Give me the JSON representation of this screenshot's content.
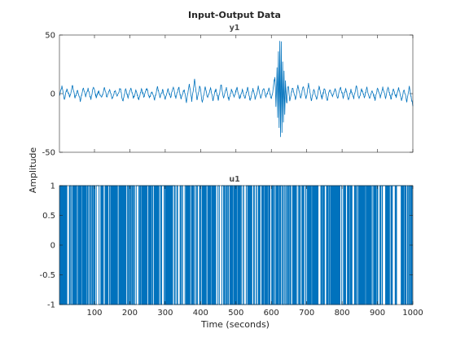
{
  "chart_data": [
    {
      "type": "line",
      "title": "Input-Output Data",
      "subtitle": "y1",
      "xlabel": "",
      "ylabel": "Amplitude",
      "xlim": [
        1,
        1000
      ],
      "ylim": [
        -50,
        50
      ],
      "yticks": [
        -50,
        0,
        50
      ],
      "xticks": [
        100,
        200,
        300,
        400,
        500,
        600,
        700,
        800,
        900,
        1000
      ],
      "grid": false,
      "series": [
        {
          "color": "#0072BD",
          "description_points": [
            [
              1,
              -2
            ],
            [
              8,
              6
            ],
            [
              15,
              -5
            ],
            [
              22,
              4
            ],
            [
              30,
              -3
            ],
            [
              38,
              7
            ],
            [
              45,
              -4
            ],
            [
              52,
              3
            ],
            [
              60,
              -6
            ],
            [
              68,
              5
            ],
            [
              75,
              -2
            ],
            [
              82,
              4
            ],
            [
              90,
              -5
            ],
            [
              97,
              6
            ],
            [
              105,
              -3
            ],
            [
              112,
              2
            ],
            [
              120,
              -4
            ],
            [
              128,
              5
            ],
            [
              135,
              -3
            ],
            [
              143,
              4
            ],
            [
              150,
              -5
            ],
            [
              158,
              3
            ],
            [
              165,
              -2
            ],
            [
              173,
              5
            ],
            [
              180,
              -7
            ],
            [
              188,
              4
            ],
            [
              195,
              -3
            ],
            [
              203,
              5
            ],
            [
              210,
              -4
            ],
            [
              218,
              3
            ],
            [
              225,
              -6
            ],
            [
              233,
              4
            ],
            [
              240,
              -3
            ],
            [
              248,
              5
            ],
            [
              255,
              -4
            ],
            [
              263,
              2
            ],
            [
              270,
              -5
            ],
            [
              278,
              6
            ],
            [
              285,
              -3
            ],
            [
              293,
              3
            ],
            [
              300,
              -5
            ],
            [
              308,
              4
            ],
            [
              315,
              -3
            ],
            [
              323,
              5
            ],
            [
              330,
              -4
            ],
            [
              338,
              6
            ],
            [
              345,
              -5
            ],
            [
              353,
              4
            ],
            [
              360,
              -7
            ],
            [
              368,
              9
            ],
            [
              375,
              -6
            ],
            [
              383,
              12
            ],
            [
              390,
              -5
            ],
            [
              398,
              7
            ],
            [
              405,
              -8
            ],
            [
              413,
              6
            ],
            [
              420,
              -4
            ],
            [
              428,
              5
            ],
            [
              435,
              -6
            ],
            [
              443,
              4
            ],
            [
              450,
              -5
            ],
            [
              458,
              8
            ],
            [
              465,
              -4
            ],
            [
              473,
              5
            ],
            [
              480,
              -6
            ],
            [
              488,
              4
            ],
            [
              495,
              -3
            ],
            [
              503,
              6
            ],
            [
              510,
              -5
            ],
            [
              518,
              3
            ],
            [
              525,
              -4
            ],
            [
              533,
              5
            ],
            [
              540,
              -6
            ],
            [
              548,
              4
            ],
            [
              555,
              -5
            ],
            [
              563,
              6
            ],
            [
              570,
              -4
            ],
            [
              578,
              5
            ],
            [
              585,
              -3
            ],
            [
              593,
              4
            ],
            [
              600,
              -5
            ],
            [
              605,
              3
            ],
            [
              610,
              15
            ],
            [
              613,
              -12
            ],
            [
              616,
              20
            ],
            [
              618,
              -22
            ],
            [
              620,
              38
            ],
            [
              622,
              -30
            ],
            [
              624,
              45
            ],
            [
              626,
              -38
            ],
            [
              628,
              42
            ],
            [
              630,
              -35
            ],
            [
              632,
              30
            ],
            [
              634,
              -25
            ],
            [
              636,
              20
            ],
            [
              638,
              -18
            ],
            [
              640,
              12
            ],
            [
              643,
              -10
            ],
            [
              647,
              8
            ],
            [
              652,
              -6
            ],
            [
              660,
              5
            ],
            [
              668,
              -5
            ],
            [
              675,
              7
            ],
            [
              683,
              -4
            ],
            [
              690,
              6
            ],
            [
              698,
              -5
            ],
            [
              705,
              9
            ],
            [
              713,
              -6
            ],
            [
              720,
              4
            ],
            [
              728,
              -5
            ],
            [
              735,
              6
            ],
            [
              743,
              -4
            ],
            [
              750,
              5
            ],
            [
              758,
              -6
            ],
            [
              765,
              4
            ],
            [
              773,
              -3
            ],
            [
              780,
              5
            ],
            [
              788,
              -4
            ],
            [
              795,
              6
            ],
            [
              803,
              -3
            ],
            [
              810,
              4
            ],
            [
              818,
              -5
            ],
            [
              825,
              3
            ],
            [
              833,
              -4
            ],
            [
              840,
              7
            ],
            [
              848,
              -5
            ],
            [
              855,
              4
            ],
            [
              863,
              -3
            ],
            [
              870,
              5
            ],
            [
              878,
              -4
            ],
            [
              885,
              3
            ],
            [
              893,
              -5
            ],
            [
              900,
              4
            ],
            [
              908,
              -3
            ],
            [
              915,
              5
            ],
            [
              923,
              -4
            ],
            [
              930,
              6
            ],
            [
              938,
              -5
            ],
            [
              945,
              4
            ],
            [
              953,
              -3
            ],
            [
              960,
              5
            ],
            [
              968,
              -6
            ],
            [
              975,
              4
            ],
            [
              983,
              -7
            ],
            [
              990,
              6
            ],
            [
              995,
              -3
            ],
            [
              1000,
              -10
            ]
          ]
        }
      ]
    },
    {
      "type": "line",
      "subtitle": "u1",
      "xlabel": "Time (seconds)",
      "ylabel": "Amplitude",
      "xlim": [
        1,
        1000
      ],
      "ylim": [
        -1,
        1
      ],
      "yticks": [
        -1,
        -0.5,
        0,
        0.5,
        1
      ],
      "ytick_labels": [
        "-1",
        "-0.5",
        "0",
        "0.5",
        "1"
      ],
      "xticks": [
        100,
        200,
        300,
        400,
        500,
        600,
        700,
        800,
        900,
        1000
      ],
      "xtick_labels": [
        "100",
        "200",
        "300",
        "400",
        "500",
        "600",
        "700",
        "800",
        "900",
        "1000"
      ],
      "grid": false,
      "series": [
        {
          "color": "#0072BD",
          "signal": "random binary sequence, values -1 and 1, step-wise switching"
        }
      ]
    }
  ]
}
